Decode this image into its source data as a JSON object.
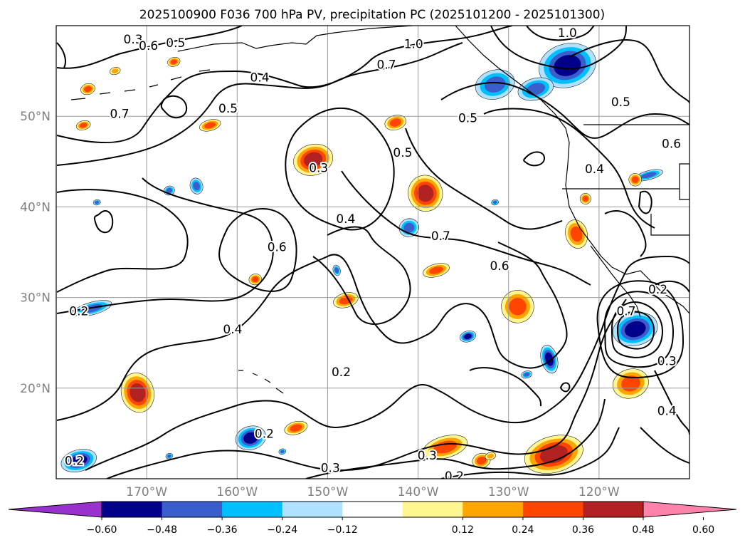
{
  "title": "2025100900 F036 700 hPa PV, precipitation PC (2025101200 - 2025101300)",
  "map": {
    "projection": "lat-lon",
    "lon_range": [
      -180,
      -110
    ],
    "lat_range": [
      10,
      60
    ],
    "grid": true,
    "lat_ticks": [
      {
        "lat": 50,
        "label": "50°N"
      },
      {
        "lat": 40,
        "label": "40°N"
      },
      {
        "lat": 30,
        "label": "30°N"
      },
      {
        "lat": 20,
        "label": "20°N"
      }
    ],
    "lon_ticks": [
      {
        "lon": -170,
        "label": "170°W"
      },
      {
        "lon": -160,
        "label": "160°W"
      },
      {
        "lon": -150,
        "label": "150°W"
      },
      {
        "lon": -140,
        "label": "140°W"
      },
      {
        "lon": -130,
        "label": "130°W"
      },
      {
        "lon": -120,
        "label": "120°W"
      }
    ]
  },
  "contour_labels": [
    {
      "text": "0.3",
      "lon": -171.5,
      "lat": 58.5
    },
    {
      "text": "0.6",
      "lon": -169.8,
      "lat": 57.8
    },
    {
      "text": "0.5",
      "lon": -166.8,
      "lat": 58.1
    },
    {
      "text": "0.4",
      "lon": -157.5,
      "lat": 54.3
    },
    {
      "text": "0.5",
      "lon": -161.0,
      "lat": 50.9
    },
    {
      "text": "0.7",
      "lon": -173.0,
      "lat": 50.3
    },
    {
      "text": "0.3",
      "lon": -151.0,
      "lat": 44.3
    },
    {
      "text": "0.5",
      "lon": -141.7,
      "lat": 46.0
    },
    {
      "text": "0.4",
      "lon": -148.0,
      "lat": 38.7
    },
    {
      "text": "0.6",
      "lon": -155.6,
      "lat": 35.6
    },
    {
      "text": "0.7",
      "lon": -137.5,
      "lat": 36.8
    },
    {
      "text": "0.6",
      "lon": -131.0,
      "lat": 33.5
    },
    {
      "text": "0.4",
      "lon": -160.5,
      "lat": 26.5
    },
    {
      "text": "0.2",
      "lon": -148.5,
      "lat": 21.8
    },
    {
      "text": "0.2",
      "lon": -177.5,
      "lat": 28.5
    },
    {
      "text": "0.2",
      "lon": -178.0,
      "lat": 12.0
    },
    {
      "text": "0.2",
      "lon": -157.0,
      "lat": 15.0
    },
    {
      "text": "0.3",
      "lon": -149.7,
      "lat": 11.2
    },
    {
      "text": "0.3",
      "lon": -139.0,
      "lat": 12.6
    },
    {
      "text": "0.2",
      "lon": -136.0,
      "lat": 10.3
    },
    {
      "text": "1.0",
      "lon": -140.5,
      "lat": 58.0
    },
    {
      "text": "1.0",
      "lon": -123.5,
      "lat": 59.2
    },
    {
      "text": "0.7",
      "lon": -143.5,
      "lat": 55.7
    },
    {
      "text": "0.5",
      "lon": -134.5,
      "lat": 49.8
    },
    {
      "text": "0.5",
      "lon": -117.6,
      "lat": 51.6
    },
    {
      "text": "0.6",
      "lon": -112.0,
      "lat": 47.0
    },
    {
      "text": "0.4",
      "lon": -120.5,
      "lat": 44.2
    },
    {
      "text": "0.2",
      "lon": -113.5,
      "lat": 30.9
    },
    {
      "text": "0.7",
      "lon": -117.0,
      "lat": 28.5
    },
    {
      "text": "0.3",
      "lon": -112.5,
      "lat": 23.0
    },
    {
      "text": "0.4",
      "lon": -112.5,
      "lat": 17.5
    }
  ],
  "colorbar": {
    "extend": "both",
    "colors": [
      "#9932cc",
      "#00008b",
      "#3a5fcd",
      "#00bfff",
      "#b0e2ff",
      "#ffffff",
      "#fff68f",
      "#ffa500",
      "#ff4500",
      "#b22222",
      "#ff82ab"
    ],
    "ticks": [
      "−0.60",
      "−0.48",
      "−0.36",
      "−0.24",
      "−0.12",
      "0.12",
      "0.24",
      "0.36",
      "0.48",
      "0.60"
    ]
  },
  "precip_blobs": [
    {
      "lon": -123.5,
      "lat": 55.6,
      "rx": 3.2,
      "ry": 2.4,
      "level": -0.48
    },
    {
      "lon": -131.5,
      "lat": 53.5,
      "rx": 2.2,
      "ry": 1.6,
      "level": -0.36
    },
    {
      "lon": -127.0,
      "lat": 53.0,
      "rx": 2.0,
      "ry": 1.2,
      "level": -0.36
    },
    {
      "lon": -114.5,
      "lat": 43.5,
      "rx": 1.6,
      "ry": 0.5,
      "level": -0.36
    },
    {
      "lon": -151.6,
      "lat": 45.2,
      "rx": 2.2,
      "ry": 1.7,
      "level": 0.48
    },
    {
      "lon": -139.2,
      "lat": 41.5,
      "rx": 1.9,
      "ry": 2.0,
      "level": 0.48
    },
    {
      "lon": -122.5,
      "lat": 37.0,
      "rx": 1.2,
      "ry": 1.6,
      "level": 0.36
    },
    {
      "lon": -121.5,
      "lat": 40.9,
      "rx": 0.6,
      "ry": 0.6,
      "level": 0.36
    },
    {
      "lon": -116.0,
      "lat": 43.0,
      "rx": 0.7,
      "ry": 0.7,
      "level": 0.36
    },
    {
      "lon": -142.5,
      "lat": 49.3,
      "rx": 1.2,
      "ry": 0.8,
      "level": 0.36
    },
    {
      "lon": -176.5,
      "lat": 53.0,
      "rx": 0.8,
      "ry": 0.6,
      "level": 0.36
    },
    {
      "lon": -177.0,
      "lat": 49.0,
      "rx": 0.8,
      "ry": 0.5,
      "level": 0.36
    },
    {
      "lon": -173.5,
      "lat": 55.0,
      "rx": 0.6,
      "ry": 0.4,
      "level": 0.24
    },
    {
      "lon": -167.0,
      "lat": 56.0,
      "rx": 0.7,
      "ry": 0.5,
      "level": 0.36
    },
    {
      "lon": -163.0,
      "lat": 49.0,
      "rx": 1.2,
      "ry": 0.6,
      "level": 0.36
    },
    {
      "lon": -138.0,
      "lat": 33.0,
      "rx": 1.5,
      "ry": 0.7,
      "level": 0.36
    },
    {
      "lon": -148.0,
      "lat": 29.7,
      "rx": 1.4,
      "ry": 0.8,
      "level": 0.36
    },
    {
      "lon": -158.0,
      "lat": 32.0,
      "rx": 0.7,
      "ry": 0.6,
      "level": 0.36
    },
    {
      "lon": -129.0,
      "lat": 29.0,
      "rx": 1.8,
      "ry": 1.8,
      "level": 0.36
    },
    {
      "lon": -171.0,
      "lat": 19.5,
      "rx": 1.8,
      "ry": 2.2,
      "level": 0.48
    },
    {
      "lon": -153.5,
      "lat": 15.6,
      "rx": 1.3,
      "ry": 0.7,
      "level": 0.36
    },
    {
      "lon": -137.0,
      "lat": 13.5,
      "rx": 2.5,
      "ry": 1.2,
      "level": 0.36
    },
    {
      "lon": -133.0,
      "lat": 12.0,
      "rx": 1.0,
      "ry": 0.8,
      "level": 0.36
    },
    {
      "lon": -125.0,
      "lat": 12.7,
      "rx": 3.3,
      "ry": 2.0,
      "level": 0.48
    },
    {
      "lon": -116.5,
      "lat": 20.5,
      "rx": 2.0,
      "ry": 1.6,
      "level": 0.36
    },
    {
      "lon": -116.0,
      "lat": 26.5,
      "rx": 2.5,
      "ry": 1.8,
      "level": -0.48
    },
    {
      "lon": -164.5,
      "lat": 42.3,
      "rx": 0.7,
      "ry": 0.9,
      "level": -0.36
    },
    {
      "lon": -167.5,
      "lat": 41.8,
      "rx": 0.6,
      "ry": 0.5,
      "level": -0.36
    },
    {
      "lon": -141.0,
      "lat": 37.7,
      "rx": 1.1,
      "ry": 1.0,
      "level": -0.36
    },
    {
      "lon": -176.0,
      "lat": 28.8,
      "rx": 2.2,
      "ry": 0.7,
      "level": -0.36
    },
    {
      "lon": -158.5,
      "lat": 14.5,
      "rx": 1.7,
      "ry": 1.3,
      "level": -0.48
    },
    {
      "lon": -177.5,
      "lat": 12.0,
      "rx": 2.0,
      "ry": 1.2,
      "level": -0.48
    },
    {
      "lon": -125.5,
      "lat": 23.2,
      "rx": 0.9,
      "ry": 1.6,
      "level": -0.48
    },
    {
      "lon": -134.5,
      "lat": 25.7,
      "rx": 0.9,
      "ry": 0.6,
      "level": -0.48
    },
    {
      "lon": -149.0,
      "lat": 33.0,
      "rx": 0.4,
      "ry": 0.6,
      "level": -0.36
    },
    {
      "lon": -155.0,
      "lat": 13.0,
      "rx": 0.4,
      "ry": 0.3,
      "level": -0.36
    },
    {
      "lon": -175.5,
      "lat": 40.5,
      "rx": 0.4,
      "ry": 0.3,
      "level": -0.36
    },
    {
      "lon": -167.5,
      "lat": 12.5,
      "rx": 0.4,
      "ry": 0.3,
      "level": -0.36
    },
    {
      "lon": -131.5,
      "lat": 40.5,
      "rx": 0.4,
      "ry": 0.3,
      "level": -0.36
    },
    {
      "lon": -128.0,
      "lat": 21.5,
      "rx": 0.6,
      "ry": 0.4,
      "level": -0.36
    },
    {
      "lon": -132.0,
      "lat": 12.5,
      "rx": 0.6,
      "ry": 0.4,
      "level": 0.24
    }
  ]
}
